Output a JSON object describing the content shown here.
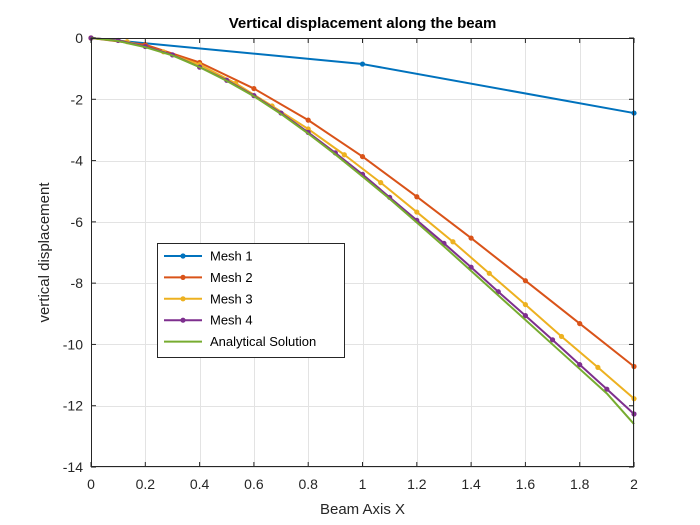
{
  "chart_data": {
    "type": "line",
    "title": "Vertical displacement along the beam",
    "xlabel": "Beam Axis X",
    "ylabel": "vertical displacement",
    "xlim": [
      0,
      2
    ],
    "ylim": [
      -14,
      0
    ],
    "xticks": [
      0,
      0.2,
      0.4,
      0.6,
      0.8,
      1,
      1.2,
      1.4,
      1.6,
      1.8,
      2
    ],
    "xtick_labels": [
      "0",
      "0.2",
      "0.4",
      "0.6",
      "0.8",
      "1",
      "1.2",
      "1.4",
      "1.6",
      "1.8",
      "2"
    ],
    "yticks": [
      0,
      -2,
      -4,
      -6,
      -8,
      -10,
      -12,
      -14
    ],
    "ytick_labels": [
      "0",
      "-2",
      "-4",
      "-6",
      "-8",
      "-10",
      "-12",
      "-14"
    ],
    "grid": true,
    "legend_position": "lower-left inside",
    "series": [
      {
        "name": "Mesh 1",
        "color": "#0072BD",
        "markers": true,
        "x": [
          0,
          1,
          2
        ],
        "y": [
          0,
          -0.85,
          -2.45
        ]
      },
      {
        "name": "Mesh 2",
        "color": "#D95319",
        "markers": true,
        "x": [
          0,
          0.2,
          0.4,
          0.6,
          0.8,
          1,
          1.2,
          1.4,
          1.6,
          1.8,
          2
        ],
        "y": [
          0,
          -0.22,
          -0.8,
          -1.65,
          -2.68,
          -3.87,
          -5.18,
          -6.53,
          -7.92,
          -9.32,
          -10.72
        ]
      },
      {
        "name": "Mesh 3",
        "color": "#EDB120",
        "markers": true,
        "x": [
          0,
          0.133,
          0.267,
          0.4,
          0.533,
          0.667,
          0.8,
          0.933,
          1.067,
          1.2,
          1.333,
          1.467,
          1.6,
          1.733,
          1.867,
          2
        ],
        "y": [
          0,
          -0.12,
          -0.45,
          -0.87,
          -1.48,
          -2.22,
          -2.97,
          -3.81,
          -4.72,
          -5.68,
          -6.65,
          -7.68,
          -8.7,
          -9.74,
          -10.75,
          -11.77
        ]
      },
      {
        "name": "Mesh 4",
        "color": "#7E2F8E",
        "markers": true,
        "x": [
          0,
          0.1,
          0.2,
          0.3,
          0.4,
          0.5,
          0.6,
          0.7,
          0.8,
          0.9,
          1,
          1.1,
          1.2,
          1.3,
          1.4,
          1.5,
          1.6,
          1.7,
          1.8,
          1.9,
          2
        ],
        "y": [
          0,
          -0.08,
          -0.28,
          -0.55,
          -0.95,
          -1.38,
          -1.88,
          -2.45,
          -3.08,
          -3.75,
          -4.45,
          -5.2,
          -5.95,
          -6.7,
          -7.48,
          -8.28,
          -9.06,
          -9.85,
          -10.66,
          -11.46,
          -12.27
        ]
      },
      {
        "name": "Analytical Solution",
        "color": "#77AC30",
        "markers": false,
        "x": [
          0,
          0.1,
          0.2,
          0.3,
          0.4,
          0.5,
          0.6,
          0.7,
          0.8,
          0.9,
          1,
          1.1,
          1.2,
          1.3,
          1.4,
          1.5,
          1.6,
          1.7,
          1.8,
          1.9,
          2
        ],
        "y": [
          0,
          -0.1,
          -0.3,
          -0.57,
          -0.95,
          -1.4,
          -1.9,
          -2.48,
          -3.12,
          -3.8,
          -4.52,
          -5.25,
          -6.02,
          -6.8,
          -7.6,
          -8.4,
          -9.2,
          -10.0,
          -10.8,
          -11.6,
          -12.6
        ]
      }
    ]
  }
}
